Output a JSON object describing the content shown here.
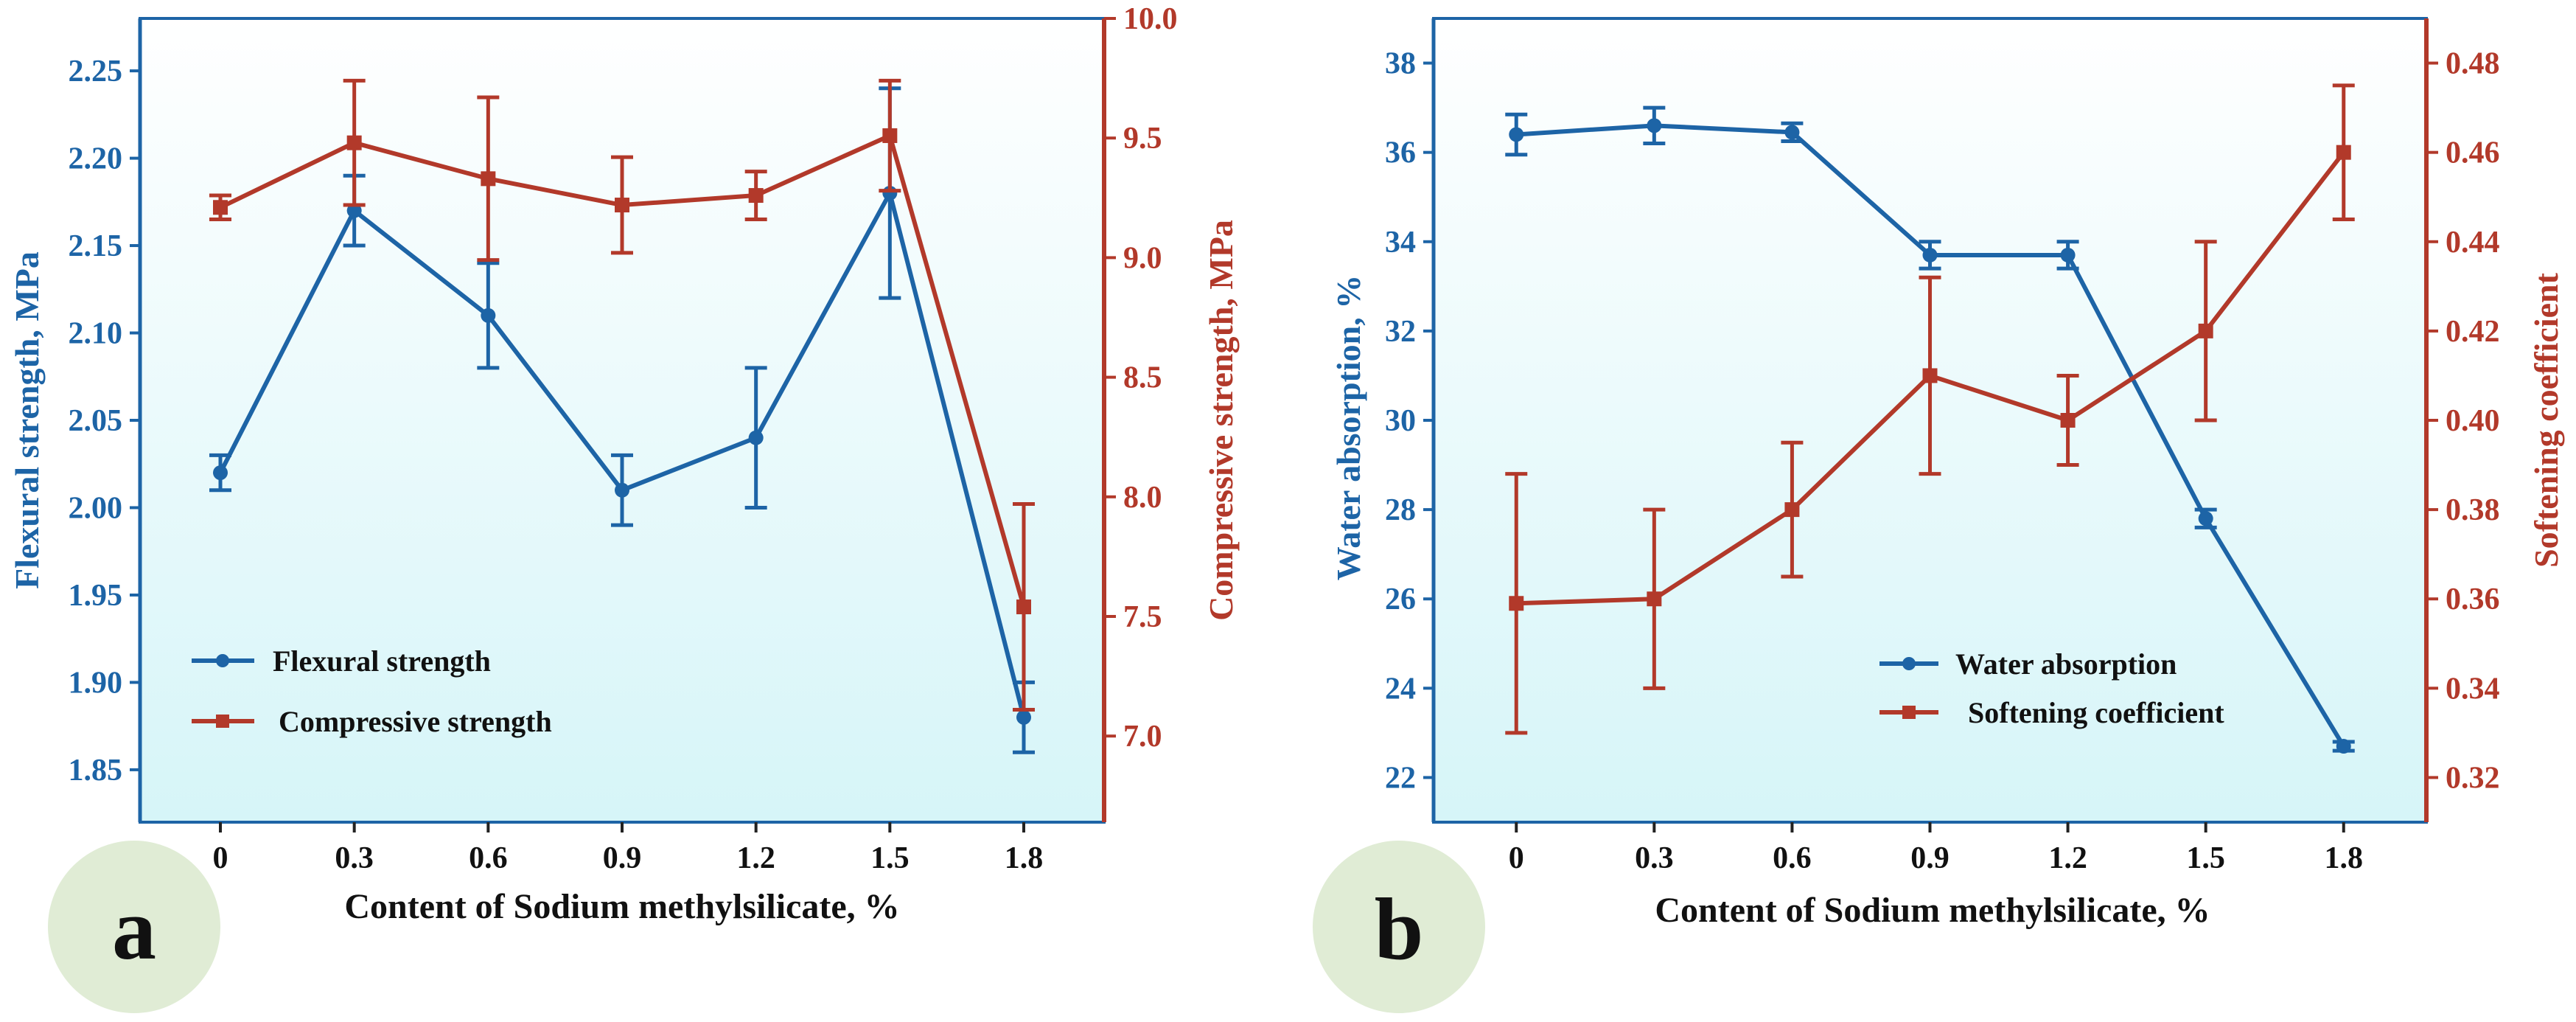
{
  "colors": {
    "blue": "#1d64a6",
    "red": "#b2392a",
    "bg_top": "#ffffff",
    "bg_bottom": "#d6f5f8",
    "badge": "#e0ecd5"
  },
  "chart_data": [
    {
      "panel": "a",
      "type": "line",
      "xlabel": "Content of Sodium methylsilicate, %",
      "categories": [
        "0",
        "0.3",
        "0.6",
        "0.9",
        "1.2",
        "1.5",
        "1.8"
      ],
      "x": [
        0,
        0.3,
        0.6,
        0.9,
        1.2,
        1.5,
        1.8
      ],
      "xlim": [
        -0.18,
        1.98
      ],
      "left_axis": {
        "label": "Flexural strength, MPa",
        "ylim": [
          1.82,
          2.28
        ],
        "ticks": [
          "1.85",
          "1.90",
          "1.95",
          "2.00",
          "2.05",
          "2.10",
          "2.15",
          "2.20",
          "2.25"
        ],
        "tick_values": [
          1.85,
          1.9,
          1.95,
          2.0,
          2.05,
          2.1,
          2.15,
          2.2,
          2.25
        ]
      },
      "right_axis": {
        "label": "Compressive strength, MPa",
        "ylim": [
          6.64,
          10.0
        ],
        "ticks": [
          "7.0",
          "7.5",
          "8.0",
          "8.5",
          "9.0",
          "9.5",
          "10.0"
        ],
        "tick_values": [
          7.0,
          7.5,
          8.0,
          8.5,
          9.0,
          9.5,
          10.0
        ]
      },
      "series": [
        {
          "name": "Flexural strength",
          "axis": "left",
          "color_key": "blue",
          "marker": "circle",
          "values": [
            2.02,
            2.17,
            2.11,
            2.01,
            2.04,
            2.18,
            1.88
          ],
          "errors": [
            0.01,
            0.02,
            0.03,
            0.02,
            0.04,
            0.06,
            0.02
          ]
        },
        {
          "name": "Compressive strength",
          "axis": "right",
          "color_key": "red",
          "marker": "square",
          "values": [
            9.21,
            9.48,
            9.33,
            9.22,
            9.26,
            9.51,
            7.54
          ],
          "errors": [
            0.05,
            0.26,
            0.34,
            0.2,
            0.1,
            0.23,
            0.43
          ]
        }
      ],
      "legend_position": "lower-left"
    },
    {
      "panel": "b",
      "type": "line",
      "xlabel": "Content of Sodium methylsilicate, %",
      "categories": [
        "0",
        "0.3",
        "0.6",
        "0.9",
        "1.2",
        "1.5",
        "1.8"
      ],
      "x": [
        0,
        0.3,
        0.6,
        0.9,
        1.2,
        1.5,
        1.8
      ],
      "xlim": [
        -0.18,
        1.98
      ],
      "left_axis": {
        "label": "Water absorption, %",
        "ylim": [
          21.0,
          39.0
        ],
        "ticks": [
          "22",
          "24",
          "26",
          "28",
          "30",
          "32",
          "34",
          "36",
          "38"
        ],
        "tick_values": [
          22,
          24,
          26,
          28,
          30,
          32,
          34,
          36,
          38
        ]
      },
      "right_axis": {
        "label": "Softening coefficient",
        "ylim": [
          0.31,
          0.49
        ],
        "ticks": [
          "0.32",
          "0.34",
          "0.36",
          "0.38",
          "0.40",
          "0.42",
          "0.44",
          "0.46",
          "0.48"
        ],
        "tick_values": [
          0.32,
          0.34,
          0.36,
          0.38,
          0.4,
          0.42,
          0.44,
          0.46,
          0.48
        ]
      },
      "series": [
        {
          "name": "Water absorption",
          "axis": "left",
          "color_key": "blue",
          "marker": "circle",
          "values": [
            36.4,
            36.6,
            36.45,
            33.7,
            33.7,
            27.8,
            22.7
          ],
          "errors": [
            0.45,
            0.4,
            0.2,
            0.3,
            0.3,
            0.2,
            0.1
          ]
        },
        {
          "name": "Softening coefficient",
          "axis": "right",
          "color_key": "red",
          "marker": "square",
          "values": [
            0.359,
            0.36,
            0.38,
            0.41,
            0.4,
            0.42,
            0.46
          ],
          "errors": [
            0.029,
            0.02,
            0.015,
            0.022,
            0.01,
            0.02,
            0.015
          ]
        }
      ],
      "legend_position": "lower-right"
    }
  ]
}
